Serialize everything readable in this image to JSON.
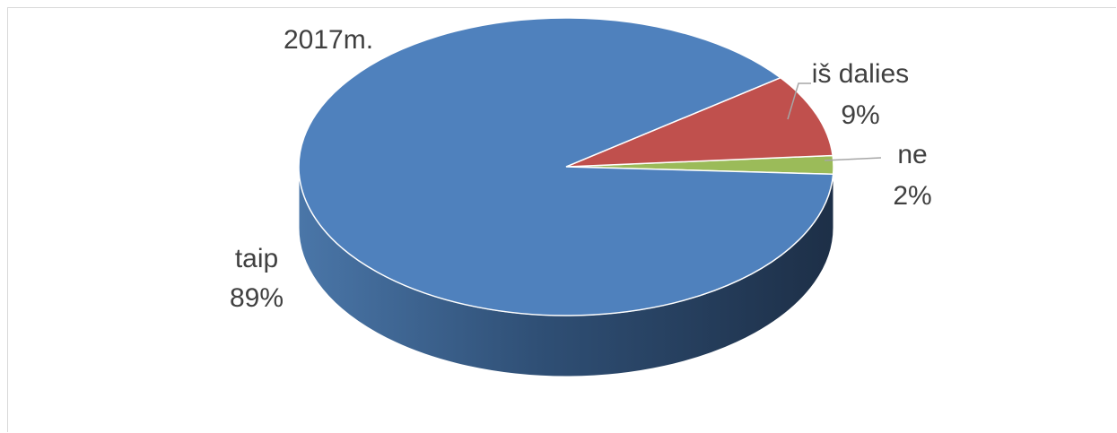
{
  "chart_data": {
    "type": "pie",
    "title": "2017m.",
    "slices": [
      {
        "label": "taip",
        "value": 89,
        "value_label": "89%",
        "color": "#4f81bd"
      },
      {
        "label": "iš dalies",
        "value": 9,
        "value_label": "9%",
        "color": "#c0504d"
      },
      {
        "label": "ne",
        "value": 2,
        "value_label": "2%",
        "color": "#9bbb59"
      }
    ],
    "style": "3d",
    "legend": "none"
  }
}
